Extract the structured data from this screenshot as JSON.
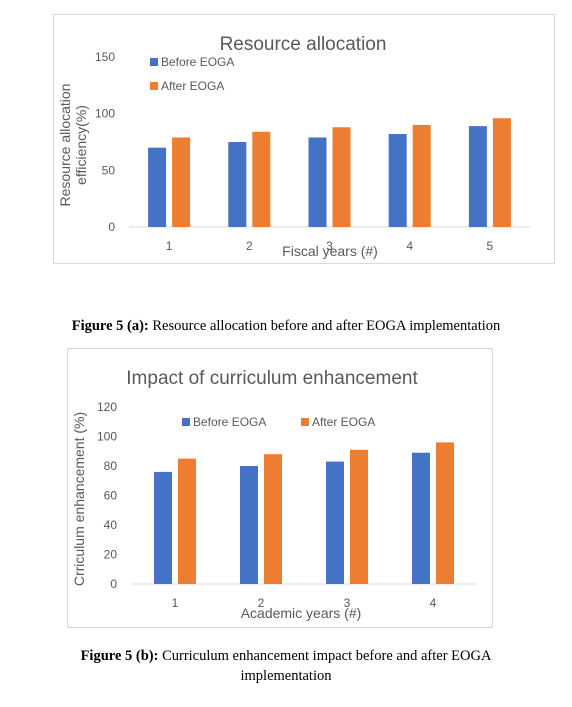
{
  "colors": {
    "before": "#4472c4",
    "after": "#ed7d31",
    "axis_text": "#595959",
    "title_text": "#595959"
  },
  "figures": [
    {
      "caption_label": "Figure 5 (a):",
      "caption_text": "Resource allocation before and after EOGA implementation",
      "caption_text_line2": ""
    },
    {
      "caption_label": "Figure 5 (b):",
      "caption_text": "Curriculum enhancement impact before and after EOGA",
      "caption_text_line2": "implementation"
    }
  ],
  "chart_data": [
    {
      "type": "bar",
      "title": "Resource allocation",
      "xlabel": "Fiscal years (#)",
      "ylabel": "Resource allocation efficiency(%)",
      "categories": [
        "1",
        "2",
        "3",
        "4",
        "5"
      ],
      "yticks": [
        "0",
        "50",
        "100",
        "150"
      ],
      "ylim": [
        0,
        150
      ],
      "legend_position": "top-left",
      "grid": false,
      "series": [
        {
          "name": "Before EOGA",
          "values": [
            70,
            75,
            79,
            82,
            89
          ]
        },
        {
          "name": "After EOGA",
          "values": [
            79,
            84,
            88,
            90,
            96
          ]
        }
      ]
    },
    {
      "type": "bar",
      "title": "Impact of curriculum enhancement",
      "xlabel": "Academic years (#)",
      "ylabel": "Crriculum enhancement (%)",
      "categories": [
        "1",
        "2",
        "3",
        "4"
      ],
      "yticks": [
        "0",
        "20",
        "40",
        "60",
        "80",
        "100",
        "120"
      ],
      "ylim": [
        0,
        120
      ],
      "legend_position": "top",
      "grid": false,
      "series": [
        {
          "name": "Before EOGA",
          "values": [
            76,
            80,
            83,
            89
          ]
        },
        {
          "name": "After EOGA",
          "values": [
            85,
            88,
            91,
            96
          ]
        }
      ]
    }
  ]
}
